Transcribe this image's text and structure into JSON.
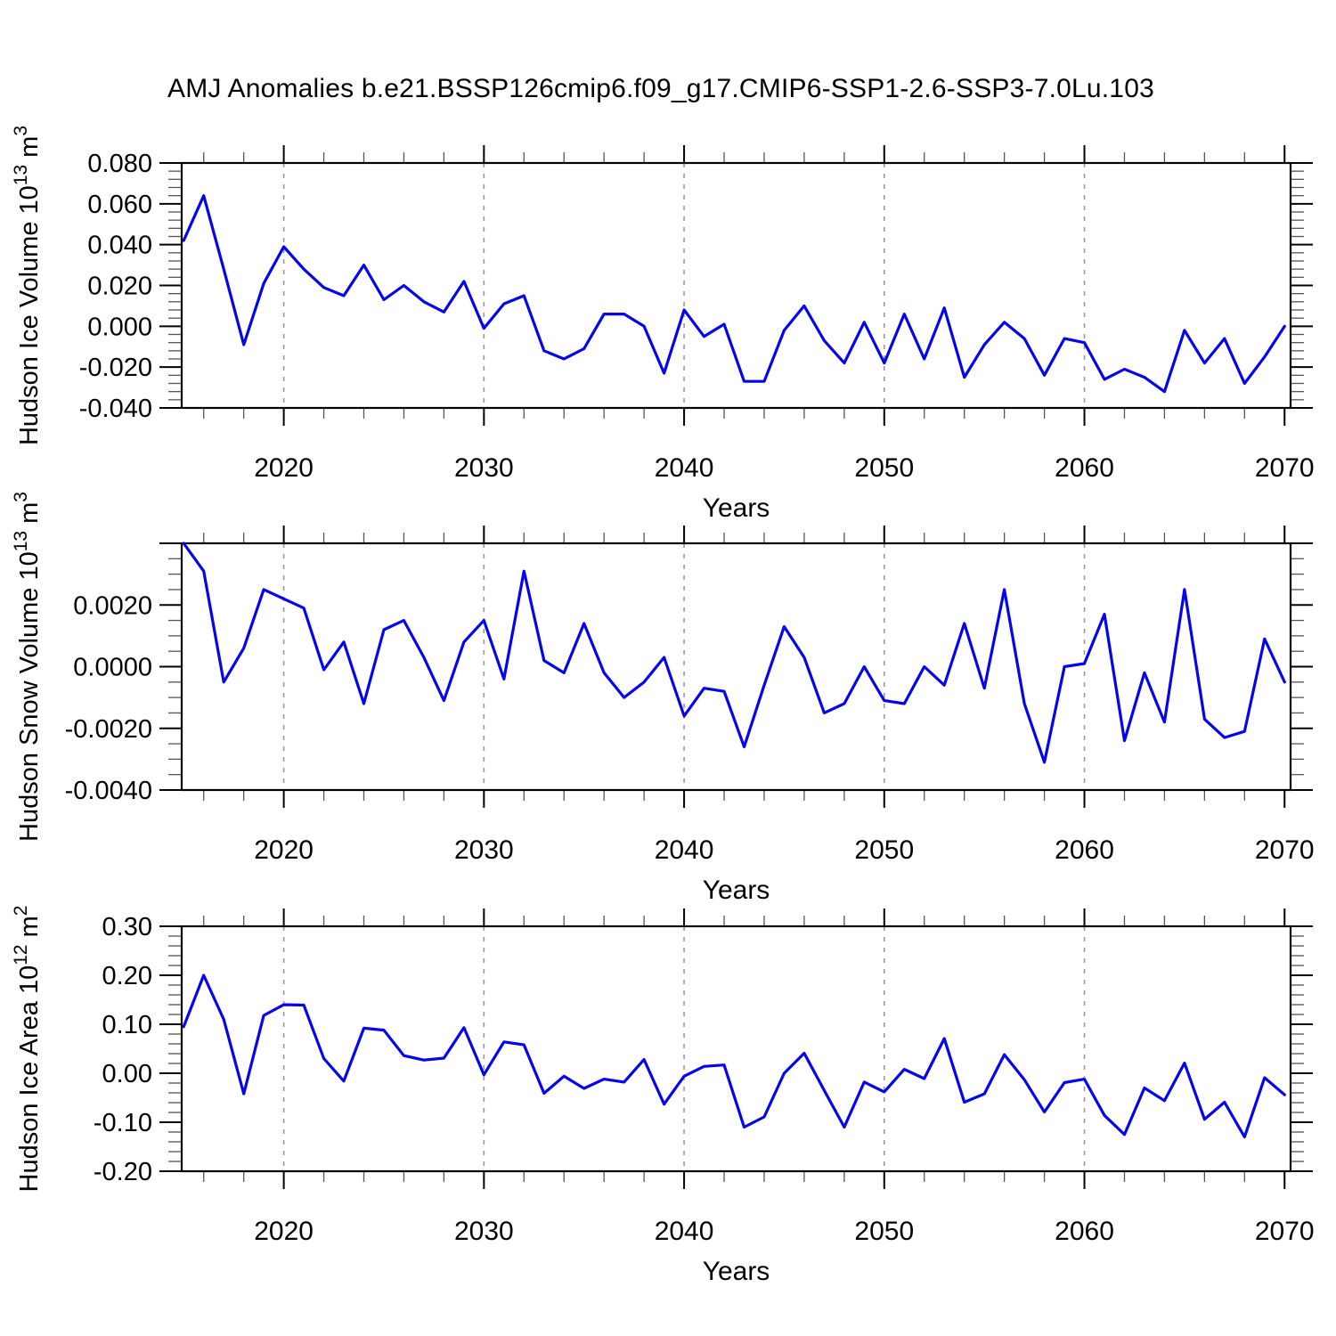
{
  "title": "AMJ Anomalies b.e21.BSSP126cmip6.f09_g17.CMIP6-SSP1-2.6-SSP3-7.0Lu.103",
  "style": {
    "line_color": "#0404ee",
    "grid_color": "#999999",
    "axis_color": "#000000",
    "minor_tick_color": "#555555",
    "background": "#ffffff",
    "text_color": "#000000"
  },
  "years": [
    2015,
    2016,
    2017,
    2018,
    2019,
    2020,
    2021,
    2022,
    2023,
    2024,
    2025,
    2026,
    2027,
    2028,
    2029,
    2030,
    2031,
    2032,
    2033,
    2034,
    2035,
    2036,
    2037,
    2038,
    2039,
    2040,
    2041,
    2042,
    2043,
    2044,
    2045,
    2046,
    2047,
    2048,
    2049,
    2050,
    2051,
    2052,
    2053,
    2054,
    2055,
    2056,
    2057,
    2058,
    2059,
    2060,
    2061,
    2062,
    2063,
    2064,
    2065,
    2066,
    2067,
    2068,
    2069,
    2070
  ],
  "x_axis": {
    "label": "Years",
    "xlim": [
      2014.9,
      2070.3
    ],
    "major_ticks": [
      2020,
      2030,
      2040,
      2050,
      2060,
      2070
    ],
    "major_tick_labels": [
      "2020",
      "2030",
      "2040",
      "2050",
      "2060",
      "2070"
    ],
    "minor_tick_step": 2,
    "gridline_years": [
      2020,
      2030,
      2040,
      2050,
      2060
    ]
  },
  "chart_data": [
    {
      "type": "line",
      "panel": "hudson-ice-volume",
      "title": "Hudson Ice Volume 10^13 m^3",
      "ylabel": {
        "base": "Hudson Ice Volume 10",
        "sup": "13",
        "mid": " m",
        "sup2": "3"
      },
      "xlabel": "Years",
      "ylim": [
        -0.04,
        0.08
      ],
      "ymajor_step": 0.02,
      "yminor_step": 0.004,
      "grid": "x-dashed",
      "legend": "none",
      "yticks": {
        "values": [
          0.08,
          0.06,
          0.04,
          0.02,
          0.0,
          -0.02,
          -0.04
        ],
        "labels": [
          "0.080",
          "0.060",
          "0.040",
          "0.020",
          "0.000",
          "-0.020",
          "-0.040"
        ]
      },
      "values": [
        0.042,
        0.064,
        0.028,
        -0.009,
        0.021,
        0.039,
        0.028,
        0.019,
        0.015,
        0.03,
        0.013,
        0.02,
        0.012,
        0.007,
        0.022,
        -0.001,
        0.011,
        0.015,
        -0.012,
        -0.016,
        -0.011,
        0.006,
        0.006,
        0.0,
        -0.023,
        0.008,
        -0.005,
        0.001,
        -0.027,
        -0.027,
        -0.002,
        0.01,
        -0.007,
        -0.018,
        0.002,
        -0.018,
        0.006,
        -0.016,
        0.009,
        -0.025,
        -0.009,
        0.002,
        -0.006,
        -0.024,
        -0.006,
        -0.008,
        -0.026,
        -0.021,
        -0.025,
        -0.032,
        -0.002,
        -0.018,
        -0.006,
        -0.028,
        -0.015,
        0.0
      ]
    },
    {
      "type": "line",
      "panel": "hudson-snow-volume",
      "title": "Hudson Snow Volume 10^13 m^3",
      "ylabel": {
        "base": "Hudson Snow Volume 10",
        "sup": "13",
        "mid": " m",
        "sup2": "3"
      },
      "xlabel": "Years",
      "ylim": [
        -0.004,
        0.004
      ],
      "ymajor_step": 0.002,
      "yminor_step": 0.0005,
      "grid": "x-dashed",
      "legend": "none",
      "yticks": {
        "values": [
          0.004,
          0.002,
          0.0,
          -0.002,
          -0.004
        ],
        "labels": [
          "",
          "0.0020",
          "0.0000",
          "-0.0020",
          "-0.0040"
        ]
      },
      "values": [
        0.004,
        0.0031,
        -0.0005,
        0.0006,
        0.0025,
        0.0022,
        0.0019,
        -0.0001,
        0.0008,
        -0.0012,
        0.0012,
        0.0015,
        0.0003,
        -0.0011,
        0.0008,
        0.0015,
        -0.0004,
        0.0031,
        0.0002,
        -0.0002,
        0.0014,
        -0.0002,
        -0.001,
        -0.0005,
        0.0003,
        -0.0016,
        -0.0007,
        -0.0008,
        -0.0026,
        -0.0006,
        0.0013,
        0.0003,
        -0.0015,
        -0.0012,
        0.0,
        -0.0011,
        -0.0012,
        0.0,
        -0.0006,
        0.0014,
        -0.0007,
        0.0025,
        -0.0012,
        -0.0031,
        0.0,
        0.0001,
        0.0017,
        -0.0024,
        -0.0002,
        -0.0018,
        0.0025,
        -0.0017,
        -0.0023,
        -0.0021,
        0.0009,
        -0.0005
      ]
    },
    {
      "type": "line",
      "panel": "hudson-ice-area",
      "title": "Hudson Ice Area 10^12 m^2",
      "ylabel": {
        "base": "Hudson Ice Area 10",
        "sup": "12",
        "mid": " m",
        "sup2": "2"
      },
      "xlabel": "Years",
      "ylim": [
        -0.2,
        0.3
      ],
      "ymajor_step": 0.1,
      "yminor_step": 0.02,
      "grid": "x-dashed",
      "legend": "none",
      "yticks": {
        "values": [
          0.3,
          0.2,
          0.1,
          0.0,
          -0.1,
          -0.2
        ],
        "labels": [
          "0.30",
          "0.20",
          "0.10",
          "0.00",
          "-0.10",
          "-0.20"
        ]
      },
      "values": [
        0.095,
        0.2,
        0.11,
        -0.042,
        0.118,
        0.14,
        0.139,
        0.03,
        -0.016,
        0.092,
        0.088,
        0.036,
        0.027,
        0.031,
        0.093,
        -0.003,
        0.064,
        0.058,
        -0.041,
        -0.006,
        -0.031,
        -0.012,
        -0.018,
        0.028,
        -0.063,
        -0.006,
        0.014,
        0.017,
        -0.11,
        -0.089,
        0.0,
        0.041,
        -0.035,
        -0.11,
        -0.018,
        -0.038,
        0.008,
        -0.011,
        0.071,
        -0.059,
        -0.042,
        0.038,
        -0.013,
        -0.079,
        -0.019,
        -0.012,
        -0.086,
        -0.125,
        -0.03,
        -0.056,
        0.021,
        -0.094,
        -0.059,
        -0.13,
        -0.009,
        -0.044
      ]
    }
  ]
}
